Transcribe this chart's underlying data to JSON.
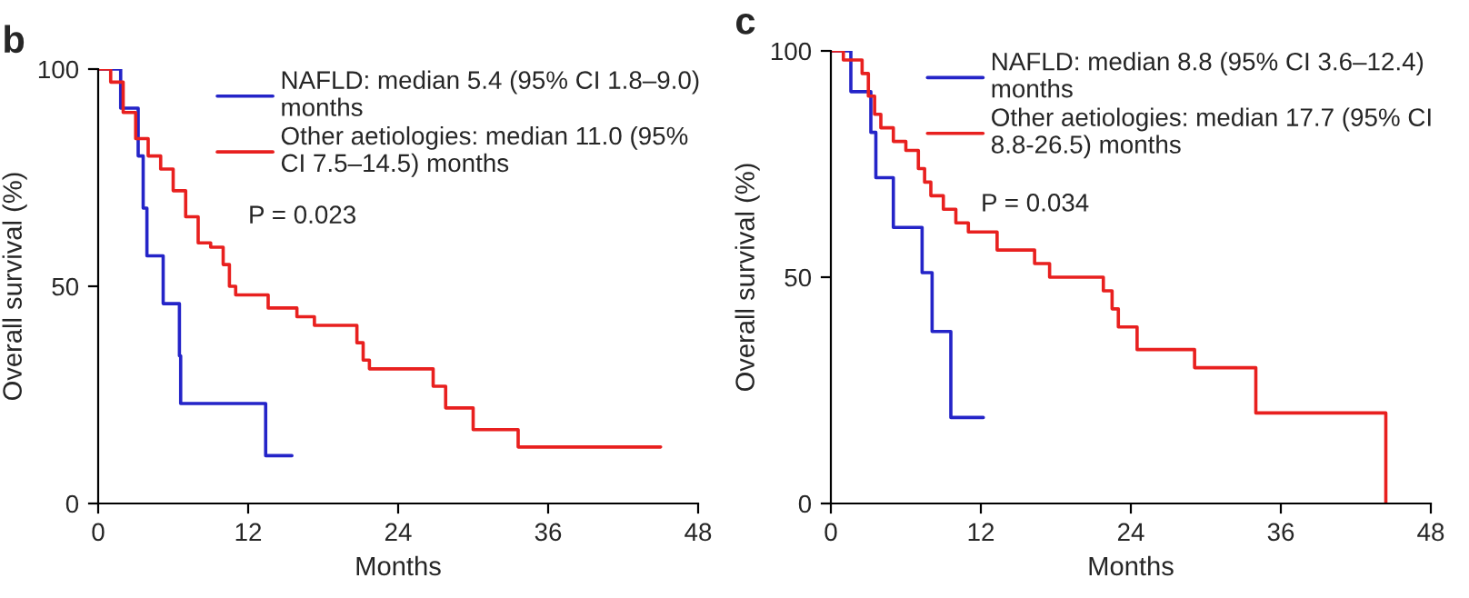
{
  "chart_data": [
    {
      "type": "step",
      "title": "b",
      "xlabel": "Months",
      "ylabel": "Overall survival (%)",
      "xlim": [
        0,
        48
      ],
      "xticks": [
        0,
        12,
        24,
        36,
        48
      ],
      "ylim": [
        0,
        100
      ],
      "yticks": [
        0,
        50,
        100
      ],
      "legend": "top right",
      "grid": false,
      "line_style": "solid",
      "marker": "none",
      "annotations": [
        "P = 0.023"
      ],
      "series": [
        {
          "name": "NAFLD: median 5.4 (95% CI 1.8–9.0)\nmonths",
          "color": "#2424c8",
          "x": [
            0,
            1.8,
            3.2,
            3.6,
            3.9,
            5.2,
            6.5,
            6.6,
            13.4,
            15.5
          ],
          "values": [
            100,
            91,
            80,
            68,
            57,
            46,
            34,
            23,
            11,
            11
          ]
        },
        {
          "name": "Other aetiologies: median 11.0 (95%\nCI 7.5–14.5) months",
          "color": "#e8201f",
          "x": [
            0,
            1,
            2,
            3,
            4,
            5,
            6,
            7,
            8,
            9,
            10,
            10.5,
            11,
            13.6,
            15.9,
            17.3,
            20.7,
            21.2,
            21.7,
            23.4,
            26.8,
            27.3,
            27.8,
            30,
            33.6,
            45
          ],
          "values": [
            100,
            97,
            90,
            84,
            80,
            77,
            72,
            66,
            60,
            59,
            55,
            50,
            48,
            45,
            43,
            41,
            37,
            33,
            31,
            31,
            27,
            27,
            22,
            17,
            13,
            13
          ]
        }
      ]
    },
    {
      "type": "step",
      "title": "c",
      "xlabel": "Months",
      "ylabel": "Overall survival (%)",
      "xlim": [
        0,
        48
      ],
      "xticks": [
        0,
        12,
        24,
        36,
        48
      ],
      "ylim": [
        0,
        100
      ],
      "yticks": [
        0,
        50,
        100
      ],
      "legend": "top right",
      "grid": false,
      "line_style": "solid",
      "marker": "none",
      "annotations": [
        "P = 0.034"
      ],
      "series": [
        {
          "name": "NAFLD: median 8.8 (95% CI 3.6–12.4)\nmonths",
          "color": "#2424c8",
          "x": [
            0,
            1.6,
            3.2,
            3.6,
            5.0,
            7.3,
            8.1,
            9.6,
            12.2
          ],
          "values": [
            100,
            91,
            82,
            72,
            61,
            51,
            38,
            19,
            19
          ]
        },
        {
          "name": "Other aetiologies: median 17.7 (95% CI\n8.8-26.5) months",
          "color": "#e8201f",
          "x": [
            0,
            1,
            2.5,
            3,
            3.5,
            4,
            5,
            6,
            7,
            7.5,
            8,
            9,
            10,
            11,
            13.3,
            16.3,
            17.5,
            21.8,
            22.5,
            23,
            24.5,
            29.1,
            34,
            44.4,
            44.4
          ],
          "values": [
            100,
            98,
            95,
            90,
            86,
            83,
            80,
            78,
            74,
            71,
            68,
            65,
            62,
            60,
            56,
            53,
            50,
            47,
            43,
            39,
            34,
            30,
            20,
            20,
            0
          ]
        }
      ]
    }
  ]
}
